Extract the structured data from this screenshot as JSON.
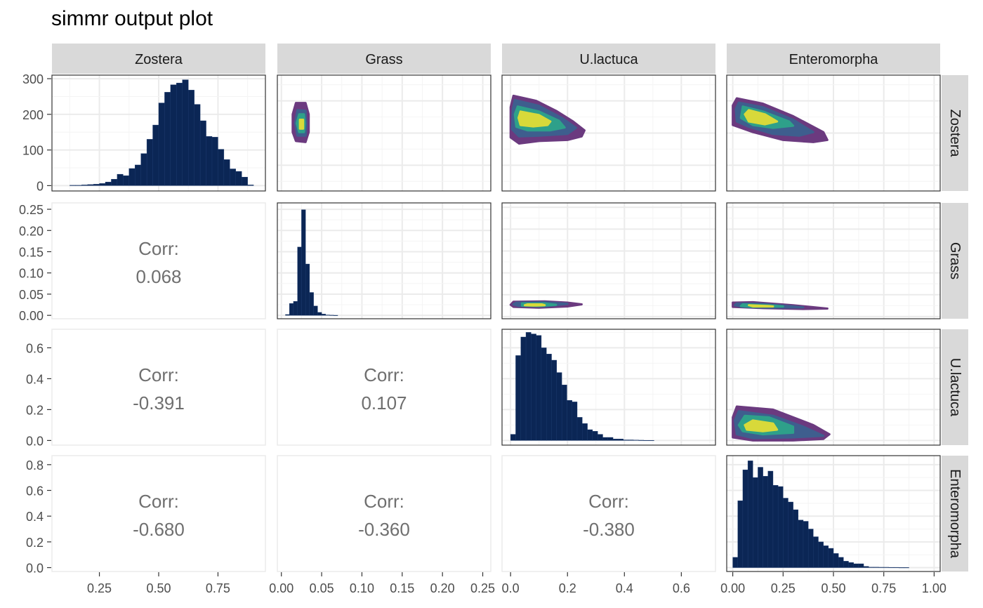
{
  "title": "simmr output plot",
  "colors": {
    "bar": "#0b2655",
    "panel_border": "#333333",
    "corr_border": "#ebebeb",
    "grid_major": "#ebebeb",
    "grid_minor": "#f4f4f4",
    "strip_fill": "#d9d9d9",
    "corr_text": "#6f6f6f",
    "tick_text": "#4d4d4d",
    "density_levels": [
      "#6b3a7f",
      "#3e5e8e",
      "#2ea08a",
      "#d8d93a"
    ]
  },
  "chart_data": {
    "type": "pairs",
    "variables": [
      "Zostera",
      "Grass",
      "U.lactuca",
      "Enteromorpha"
    ],
    "x_ranges": [
      [
        0.05,
        0.95
      ],
      [
        -0.005,
        0.26
      ],
      [
        -0.03,
        0.72
      ],
      [
        -0.03,
        1.03
      ]
    ],
    "x_ticks": [
      [
        "0.25",
        "0.50",
        "0.75"
      ],
      [
        "0.00",
        "0.05",
        "0.10",
        "0.15",
        "0.20",
        "0.25"
      ],
      [
        "0.0",
        "0.2",
        "0.4",
        "0.6"
      ],
      [
        "0.00",
        "0.25",
        "0.50",
        "0.75",
        "1.00"
      ]
    ],
    "x_tick_values": [
      [
        0.25,
        0.5,
        0.75
      ],
      [
        0,
        0.05,
        0.1,
        0.15,
        0.2,
        0.25
      ],
      [
        0,
        0.2,
        0.4,
        0.6
      ],
      [
        0,
        0.25,
        0.5,
        0.75,
        1.0
      ]
    ],
    "y_axes": [
      {
        "range": [
          -15,
          310
        ],
        "ticks": [
          "0",
          "100",
          "200",
          "300"
        ],
        "tick_values": [
          0,
          100,
          200,
          300
        ]
      },
      {
        "range": [
          -0.008,
          0.265
        ],
        "ticks": [
          "0.00",
          "0.05",
          "0.10",
          "0.15",
          "0.20",
          "0.25"
        ],
        "tick_values": [
          0,
          0.05,
          0.1,
          0.15,
          0.2,
          0.25
        ]
      },
      {
        "range": [
          -0.03,
          0.72
        ],
        "ticks": [
          "0.0",
          "0.2",
          "0.4",
          "0.6"
        ],
        "tick_values": [
          0,
          0.2,
          0.4,
          0.6
        ]
      },
      {
        "range": [
          -0.03,
          0.87
        ],
        "ticks": [
          "0.0",
          "0.2",
          "0.4",
          "0.6",
          "0.8"
        ],
        "tick_values": [
          0,
          0.2,
          0.4,
          0.6,
          0.8
        ]
      }
    ],
    "histograms": [
      {
        "variable": "Zostera",
        "bin_width": 0.025,
        "bins": [
          0.125,
          0.15,
          0.175,
          0.2,
          0.225,
          0.25,
          0.275,
          0.3,
          0.325,
          0.35,
          0.375,
          0.4,
          0.425,
          0.45,
          0.475,
          0.5,
          0.525,
          0.55,
          0.575,
          0.6,
          0.625,
          0.65,
          0.675,
          0.7,
          0.725,
          0.75,
          0.775,
          0.8,
          0.825,
          0.85,
          0.875
        ],
        "counts": [
          1,
          1,
          2,
          3,
          4,
          6,
          10,
          18,
          32,
          28,
          48,
          58,
          90,
          130,
          170,
          232,
          262,
          283,
          288,
          297,
          268,
          228,
          182,
          138,
          136,
          102,
          73,
          47,
          40,
          24,
          2
        ]
      },
      {
        "variable": "Grass",
        "bin_width": 0.005,
        "bins": [
          0.005,
          0.01,
          0.015,
          0.02,
          0.025,
          0.03,
          0.035,
          0.04,
          0.045,
          0.05,
          0.055,
          0.06,
          0.065
        ],
        "counts": [
          0.002,
          0.028,
          0.033,
          0.161,
          0.249,
          0.121,
          0.054,
          0.022,
          0.007,
          0.003,
          0.001,
          0.0005,
          0.0002
        ]
      },
      {
        "variable": "U.lactuca",
        "bin_width": 0.018,
        "bins": [
          0.0,
          0.018,
          0.036,
          0.054,
          0.072,
          0.09,
          0.108,
          0.126,
          0.144,
          0.162,
          0.18,
          0.198,
          0.216,
          0.234,
          0.252,
          0.27,
          0.288,
          0.306,
          0.324,
          0.342,
          0.36,
          0.378,
          0.396,
          0.414,
          0.432,
          0.45,
          0.468,
          0.486
        ],
        "counts": [
          0.04,
          0.55,
          0.67,
          0.7,
          0.69,
          0.68,
          0.6,
          0.56,
          0.52,
          0.44,
          0.36,
          0.26,
          0.25,
          0.15,
          0.11,
          0.07,
          0.06,
          0.04,
          0.02,
          0.02,
          0.01,
          0.01,
          0.004,
          0.004,
          0.003,
          0.002,
          0.001,
          0.001
        ]
      },
      {
        "variable": "Enteromorpha",
        "bin_width": 0.025,
        "bins": [
          0.0,
          0.025,
          0.05,
          0.075,
          0.1,
          0.125,
          0.15,
          0.175,
          0.2,
          0.225,
          0.25,
          0.275,
          0.3,
          0.325,
          0.35,
          0.375,
          0.4,
          0.425,
          0.45,
          0.475,
          0.5,
          0.525,
          0.55,
          0.575,
          0.6,
          0.625,
          0.65,
          0.675,
          0.7,
          0.725,
          0.75,
          0.775,
          0.8,
          0.825,
          0.85
        ],
        "counts": [
          0.08,
          0.52,
          0.76,
          0.83,
          0.7,
          0.78,
          0.71,
          0.75,
          0.64,
          0.63,
          0.54,
          0.51,
          0.45,
          0.37,
          0.36,
          0.3,
          0.24,
          0.2,
          0.17,
          0.15,
          0.11,
          0.08,
          0.05,
          0.04,
          0.03,
          0.03,
          0.01,
          0.004,
          0.004,
          0.003,
          0.003,
          0.002,
          0.002,
          0.001,
          0.001
        ]
      }
    ],
    "correlations": [
      {
        "row": "Grass",
        "col": "Zostera",
        "label": "Corr:",
        "value": "0.068"
      },
      {
        "row": "U.lactuca",
        "col": "Zostera",
        "label": "Corr:",
        "value": "-0.391"
      },
      {
        "row": "U.lactuca",
        "col": "Grass",
        "label": "Corr:",
        "value": "0.107"
      },
      {
        "row": "Enteromorpha",
        "col": "Zostera",
        "label": "Corr:",
        "value": "-0.680"
      },
      {
        "row": "Enteromorpha",
        "col": "Grass",
        "label": "Corr:",
        "value": "-0.360"
      },
      {
        "row": "Enteromorpha",
        "col": "U.lactuca",
        "label": "Corr:",
        "value": "-0.380"
      }
    ],
    "density_panels": [
      {
        "row": "Zostera",
        "col": "Grass",
        "levels": [
          [
            [
              0.018,
              125
            ],
            [
              0.03,
              122
            ],
            [
              0.034,
              150
            ],
            [
              0.034,
              200
            ],
            [
              0.03,
              232
            ],
            [
              0.018,
              232
            ],
            [
              0.014,
              200
            ],
            [
              0.014,
              150
            ]
          ],
          [
            [
              0.02,
              140
            ],
            [
              0.03,
              140
            ],
            [
              0.031,
              170
            ],
            [
              0.03,
              210
            ],
            [
              0.02,
              212
            ],
            [
              0.017,
              175
            ]
          ],
          [
            [
              0.022,
              150
            ],
            [
              0.028,
              150
            ],
            [
              0.029,
              175
            ],
            [
              0.028,
              200
            ],
            [
              0.022,
              200
            ],
            [
              0.019,
              175
            ]
          ],
          [
            [
              0.023,
              160
            ],
            [
              0.027,
              160
            ],
            [
              0.027,
              185
            ],
            [
              0.023,
              185
            ]
          ]
        ]
      },
      {
        "row": "Zostera",
        "col": "U.lactuca",
        "levels": [
          [
            [
              0.01,
              252
            ],
            [
              0.09,
              238
            ],
            [
              0.16,
              210
            ],
            [
              0.22,
              180
            ],
            [
              0.26,
              155
            ],
            [
              0.25,
              138
            ],
            [
              0.2,
              128
            ],
            [
              0.1,
              125
            ],
            [
              0.03,
              118
            ],
            [
              0.0,
              135
            ],
            [
              0.0,
              220
            ]
          ],
          [
            [
              0.015,
              240
            ],
            [
              0.1,
              224
            ],
            [
              0.18,
              190
            ],
            [
              0.23,
              162
            ],
            [
              0.2,
              145
            ],
            [
              0.1,
              140
            ],
            [
              0.03,
              138
            ],
            [
              0.005,
              158
            ],
            [
              0.008,
              215
            ]
          ],
          [
            [
              0.025,
              222
            ],
            [
              0.1,
              208
            ],
            [
              0.17,
              182
            ],
            [
              0.19,
              163
            ],
            [
              0.14,
              155
            ],
            [
              0.06,
              155
            ],
            [
              0.02,
              165
            ],
            [
              0.015,
              200
            ]
          ],
          [
            [
              0.035,
              208
            ],
            [
              0.1,
              198
            ],
            [
              0.14,
              180
            ],
            [
              0.13,
              170
            ],
            [
              0.08,
              166
            ],
            [
              0.035,
              170
            ],
            [
              0.028,
              190
            ]
          ]
        ]
      },
      {
        "row": "Zostera",
        "col": "Enteromorpha",
        "levels": [
          [
            [
              0.02,
              245
            ],
            [
              0.15,
              230
            ],
            [
              0.3,
              195
            ],
            [
              0.45,
              150
            ],
            [
              0.47,
              128
            ],
            [
              0.4,
              122
            ],
            [
              0.25,
              128
            ],
            [
              0.1,
              150
            ],
            [
              0.0,
              170
            ],
            [
              0.0,
              225
            ]
          ],
          [
            [
              0.03,
              233
            ],
            [
              0.15,
              220
            ],
            [
              0.3,
              185
            ],
            [
              0.4,
              150
            ],
            [
              0.33,
              140
            ],
            [
              0.2,
              145
            ],
            [
              0.08,
              165
            ],
            [
              0.02,
              180
            ],
            [
              0.015,
              215
            ]
          ],
          [
            [
              0.05,
              222
            ],
            [
              0.15,
              208
            ],
            [
              0.28,
              180
            ],
            [
              0.3,
              168
            ],
            [
              0.2,
              162
            ],
            [
              0.1,
              170
            ],
            [
              0.04,
              190
            ]
          ],
          [
            [
              0.08,
              212
            ],
            [
              0.16,
              200
            ],
            [
              0.22,
              180
            ],
            [
              0.16,
              172
            ],
            [
              0.08,
              180
            ],
            [
              0.06,
              200
            ]
          ]
        ]
      },
      {
        "row": "Grass",
        "col": "U.lactuca",
        "levels": [
          [
            [
              0.01,
              0.032
            ],
            [
              0.12,
              0.033
            ],
            [
              0.2,
              0.03
            ],
            [
              0.25,
              0.026
            ],
            [
              0.2,
              0.021
            ],
            [
              0.1,
              0.018
            ],
            [
              0.01,
              0.02
            ],
            [
              0.0,
              0.025
            ]
          ],
          [
            [
              0.02,
              0.03
            ],
            [
              0.12,
              0.031
            ],
            [
              0.2,
              0.027
            ],
            [
              0.12,
              0.021
            ],
            [
              0.03,
              0.022
            ],
            [
              0.01,
              0.026
            ]
          ],
          [
            [
              0.04,
              0.028
            ],
            [
              0.12,
              0.028
            ],
            [
              0.16,
              0.025
            ],
            [
              0.1,
              0.022
            ],
            [
              0.04,
              0.023
            ]
          ],
          [
            [
              0.06,
              0.026
            ],
            [
              0.11,
              0.026
            ],
            [
              0.12,
              0.024
            ],
            [
              0.08,
              0.023
            ],
            [
              0.05,
              0.024
            ]
          ]
        ]
      },
      {
        "row": "Grass",
        "col": "Enteromorpha",
        "levels": [
          [
            [
              0.0,
              0.03
            ],
            [
              0.1,
              0.031
            ],
            [
              0.3,
              0.024
            ],
            [
              0.47,
              0.016
            ],
            [
              0.35,
              0.015
            ],
            [
              0.15,
              0.017
            ],
            [
              0.0,
              0.02
            ]
          ],
          [
            [
              0.02,
              0.028
            ],
            [
              0.15,
              0.027
            ],
            [
              0.35,
              0.019
            ],
            [
              0.2,
              0.018
            ],
            [
              0.05,
              0.02
            ],
            [
              0.01,
              0.024
            ]
          ],
          [
            [
              0.05,
              0.026
            ],
            [
              0.2,
              0.023
            ],
            [
              0.25,
              0.021
            ],
            [
              0.1,
              0.02
            ],
            [
              0.04,
              0.022
            ]
          ],
          [
            [
              0.08,
              0.024
            ],
            [
              0.18,
              0.022
            ],
            [
              0.2,
              0.021
            ],
            [
              0.1,
              0.021
            ]
          ]
        ]
      },
      {
        "row": "U.lactuca",
        "col": "Enteromorpha",
        "levels": [
          [
            [
              0.02,
              0.22
            ],
            [
              0.2,
              0.2
            ],
            [
              0.4,
              0.1
            ],
            [
              0.48,
              0.04
            ],
            [
              0.45,
              0.01
            ],
            [
              0.3,
              0.0
            ],
            [
              0.1,
              0.0
            ],
            [
              0.0,
              0.02
            ],
            [
              0.0,
              0.15
            ]
          ],
          [
            [
              0.03,
              0.19
            ],
            [
              0.2,
              0.16
            ],
            [
              0.35,
              0.09
            ],
            [
              0.45,
              0.03
            ],
            [
              0.3,
              0.02
            ],
            [
              0.1,
              0.015
            ],
            [
              0.02,
              0.04
            ],
            [
              0.01,
              0.13
            ]
          ],
          [
            [
              0.06,
              0.16
            ],
            [
              0.18,
              0.15
            ],
            [
              0.3,
              0.09
            ],
            [
              0.3,
              0.05
            ],
            [
              0.15,
              0.04
            ],
            [
              0.05,
              0.06
            ],
            [
              0.03,
              0.1
            ]
          ],
          [
            [
              0.1,
              0.13
            ],
            [
              0.2,
              0.11
            ],
            [
              0.22,
              0.07
            ],
            [
              0.15,
              0.06
            ],
            [
              0.07,
              0.07
            ],
            [
              0.06,
              0.1
            ]
          ]
        ]
      }
    ]
  }
}
